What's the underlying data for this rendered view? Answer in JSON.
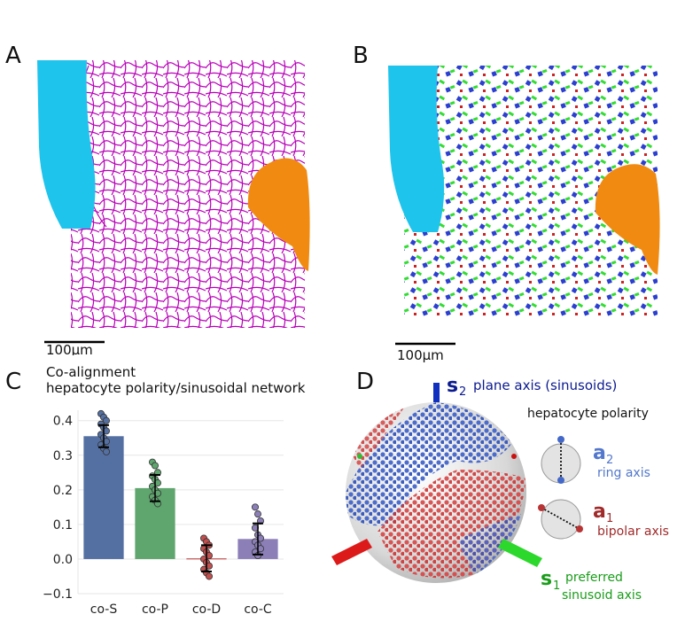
{
  "panels": {
    "A": {
      "letter": "A",
      "scale_bar": "100μm"
    },
    "B": {
      "letter": "B",
      "scale_bar": "100μm"
    },
    "C": {
      "letter": "C",
      "title_line1": "Co-alignment",
      "title_line2": "hepatocyte polarity/sinusoidal network"
    },
    "D": {
      "letter": "D",
      "s2_symbol": "s",
      "s2_sub": "2",
      "s2_label": "plane axis (sinusoids)",
      "polarity_title": "hepatocyte polarity",
      "a2_symbol": "a",
      "a2_sub": "2",
      "a2_label": "ring axis",
      "a1_symbol": "a",
      "a1_sub": "1",
      "a1_label": "bipolar axis",
      "s1_symbol": "s",
      "s1_sub": "1",
      "s1_label_line1": "preferred",
      "s1_label_line2": "sinusoid axis"
    }
  },
  "colors": {
    "magenta": "#b800b8",
    "cyan": "#1ec4ec",
    "orange": "#f08a10",
    "blue": "#2b3fd0",
    "green": "#33dd33",
    "red": "#cc2222"
  },
  "chart_data": {
    "type": "bar",
    "categories": [
      "co-S",
      "co-P",
      "co-D",
      "co-C"
    ],
    "values": [
      0.355,
      0.205,
      0.002,
      0.058
    ],
    "errors": [
      0.032,
      0.038,
      0.038,
      0.045
    ],
    "bar_colors": [
      "#5470a2",
      "#5fa56e",
      "#c1504f",
      "#8c7fb8"
    ],
    "points": [
      [
        0.42,
        0.41,
        0.4,
        0.39,
        0.38,
        0.37,
        0.36,
        0.35,
        0.34,
        0.33,
        0.32,
        0.31
      ],
      [
        0.28,
        0.27,
        0.25,
        0.24,
        0.23,
        0.22,
        0.21,
        0.2,
        0.19,
        0.18,
        0.17,
        0.16
      ],
      [
        0.06,
        0.05,
        0.04,
        0.03,
        0.02,
        0.01,
        0.0,
        -0.01,
        -0.02,
        -0.03,
        -0.04,
        -0.05
      ],
      [
        0.15,
        0.13,
        0.11,
        0.09,
        0.07,
        0.06,
        0.05,
        0.04,
        0.03,
        0.02,
        0.01
      ]
    ],
    "yticks": [
      "0.4",
      "0.3",
      "0.2",
      "0.1",
      "0.0",
      "−0.1"
    ],
    "ylim": [
      -0.1,
      0.43
    ]
  }
}
